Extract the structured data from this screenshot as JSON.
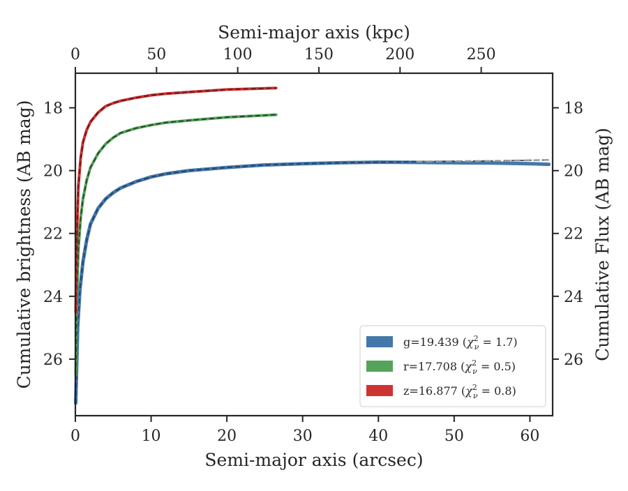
{
  "chart_data": {
    "type": "line",
    "x_axis_bottom": {
      "label": "Semi-major axis (arcsec)",
      "range": [
        0,
        63
      ],
      "ticks": [
        0,
        10,
        20,
        30,
        40,
        50,
        60
      ]
    },
    "x_axis_top": {
      "label": "Semi-major axis (kpc)",
      "range": [
        0,
        294
      ],
      "ticks": [
        0,
        50,
        100,
        150,
        200,
        250
      ]
    },
    "y_axis_left": {
      "label": "Cumulative brightness (AB mag)",
      "range": [
        27.8,
        16.9
      ],
      "inverted": true,
      "ticks": [
        18,
        20,
        22,
        24,
        26
      ]
    },
    "y_axis_right": {
      "label": "Cumulative Flux (AB mag)",
      "range": [
        27.8,
        16.9
      ],
      "inverted": true,
      "ticks": [
        18,
        20,
        22,
        24,
        26
      ]
    },
    "grid": false,
    "legend_position": "lower-right",
    "series": [
      {
        "name": "g=19.439",
        "chi_label": "χ²ν = 1.7",
        "color": "#4477aa",
        "model_color": "#1f3a5f",
        "x": [
          0.05,
          0.3,
          0.6,
          1,
          1.5,
          2,
          3,
          4,
          5,
          6,
          8,
          10,
          12,
          15,
          20,
          25,
          30,
          35,
          40,
          45,
          50,
          55,
          60,
          62.5
        ],
        "y": [
          27.4,
          25.0,
          23.8,
          22.9,
          22.2,
          21.7,
          21.2,
          20.9,
          20.7,
          20.55,
          20.35,
          20.2,
          20.1,
          20.0,
          19.9,
          19.82,
          19.78,
          19.75,
          19.73,
          19.74,
          19.75,
          19.76,
          19.78,
          19.8
        ],
        "model_y": [
          27.4,
          25.0,
          23.8,
          22.9,
          22.2,
          21.7,
          21.2,
          20.9,
          20.7,
          20.55,
          20.35,
          20.2,
          20.1,
          20.0,
          19.9,
          19.82,
          19.78,
          19.75,
          19.73,
          19.71,
          19.7,
          19.69,
          19.67,
          19.66
        ]
      },
      {
        "name": "r=17.708",
        "chi_label": "χ²ν = 0.5",
        "color": "#55a35a",
        "model_color": "#1d3d20",
        "x": [
          0.05,
          0.2,
          0.4,
          0.7,
          1,
          1.5,
          2,
          3,
          4,
          5,
          6,
          8,
          10,
          12,
          15,
          20,
          26.5
        ],
        "y": [
          26.5,
          24.0,
          22.5,
          21.5,
          20.9,
          20.3,
          19.9,
          19.45,
          19.15,
          18.95,
          18.8,
          18.65,
          18.55,
          18.47,
          18.4,
          18.3,
          18.22
        ],
        "model_y": [
          26.5,
          24.0,
          22.5,
          21.5,
          20.9,
          20.3,
          19.9,
          19.45,
          19.15,
          18.95,
          18.8,
          18.65,
          18.55,
          18.47,
          18.4,
          18.3,
          18.22
        ]
      },
      {
        "name": "z=16.877",
        "chi_label": "χ²ν = 0.8",
        "color": "#cc3333",
        "model_color": "#5a1515",
        "x": [
          0.05,
          0.2,
          0.4,
          0.7,
          1,
          1.5,
          2,
          3,
          4,
          5,
          6,
          8,
          10,
          12,
          15,
          20,
          26.5
        ],
        "y": [
          24.5,
          22.0,
          20.5,
          19.6,
          19.1,
          18.7,
          18.45,
          18.15,
          17.95,
          17.85,
          17.78,
          17.68,
          17.6,
          17.55,
          17.5,
          17.42,
          17.37
        ],
        "model_y": [
          24.5,
          22.0,
          20.5,
          19.6,
          19.1,
          18.7,
          18.45,
          18.15,
          17.95,
          17.85,
          17.78,
          17.68,
          17.6,
          17.55,
          17.5,
          17.42,
          17.37
        ]
      }
    ]
  }
}
